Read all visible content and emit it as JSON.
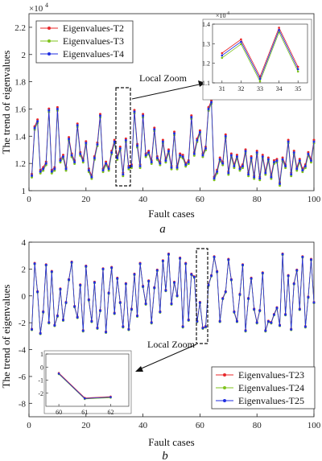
{
  "chart_data": [
    {
      "type": "line",
      "caption": "a",
      "xlabel": "Fault cases",
      "ylabel": "The trend of eigenvalues",
      "y_exponent_label": "×10",
      "y_exponent_power": "4",
      "xlim": [
        0,
        100
      ],
      "ylim": [
        1.0,
        2.3
      ],
      "xticks": [
        "0",
        "20",
        "40",
        "60",
        "80",
        "100"
      ],
      "yticks": [
        "1",
        "1.2",
        "1.4",
        "1.6",
        "1.8",
        "2",
        "2.2"
      ],
      "legend_position": "top-left",
      "grid": false,
      "series": [
        {
          "name": "Eigenvalues-T2",
          "color": "#e8272a",
          "offset": 0.012
        },
        {
          "name": "Eigenvalues-T3",
          "color": "#7fc31c",
          "offset": -0.012
        },
        {
          "name": "Eigenvalues-T4",
          "color": "#1f2ee0",
          "offset": 0
        }
      ],
      "x": [
        1,
        2,
        3,
        4,
        5,
        6,
        7,
        8,
        9,
        10,
        11,
        12,
        13,
        14,
        15,
        16,
        17,
        18,
        19,
        20,
        21,
        22,
        23,
        24,
        25,
        26,
        27,
        28,
        29,
        30,
        31,
        32,
        33,
        34,
        35,
        36,
        37,
        38,
        39,
        40,
        41,
        42,
        43,
        44,
        45,
        46,
        47,
        48,
        49,
        50,
        51,
        52,
        53,
        54,
        55,
        56,
        57,
        58,
        59,
        60,
        61,
        62,
        63,
        64,
        65,
        66,
        67,
        68,
        69,
        70,
        71,
        72,
        73,
        74,
        75,
        76,
        77,
        78,
        79,
        80,
        81,
        82,
        83,
        84,
        85,
        86,
        87,
        88,
        89,
        90,
        91,
        92,
        93,
        94,
        95,
        96,
        97,
        98,
        99,
        100
      ],
      "values": [
        1.11,
        1.46,
        1.51,
        1.14,
        1.16,
        1.2,
        1.59,
        1.14,
        1.16,
        1.6,
        1.22,
        1.25,
        1.16,
        1.38,
        1.26,
        1.21,
        1.48,
        1.27,
        1.22,
        1.35,
        1.15,
        1.1,
        1.24,
        1.34,
        1.55,
        1.15,
        1.2,
        1.16,
        1.28,
        1.36,
        1.24,
        1.31,
        1.12,
        1.37,
        1.17,
        1.18,
        1.58,
        1.33,
        1.18,
        1.55,
        1.26,
        1.28,
        1.21,
        1.45,
        1.24,
        1.2,
        1.36,
        1.22,
        1.29,
        1.17,
        1.42,
        1.17,
        1.26,
        1.25,
        1.19,
        1.21,
        1.54,
        1.27,
        1.37,
        1.43,
        1.26,
        1.31,
        1.6,
        1.65,
        1.09,
        1.14,
        1.23,
        1.2,
        1.4,
        1.13,
        1.26,
        1.18,
        1.25,
        1.16,
        1.18,
        1.29,
        1.12,
        1.24,
        1.1,
        1.28,
        1.09,
        1.25,
        1.13,
        1.23,
        1.1,
        1.21,
        1.22,
        1.05,
        1.23,
        1.18,
        1.36,
        1.12,
        1.28,
        1.16,
        1.22,
        1.15,
        1.18,
        1.27,
        1.22,
        1.36
      ],
      "annotation": "Local Zoom",
      "inset": {
        "exponent_label": "×10",
        "exponent_power": "4",
        "xlim": [
          30.5,
          35.5
        ],
        "ylim": [
          1.1,
          1.4
        ],
        "xticks": [
          "31",
          "32",
          "33",
          "34",
          "35"
        ],
        "yticks": [
          "1.1",
          "1.2",
          "1.3",
          "1.4"
        ]
      }
    },
    {
      "type": "line",
      "caption": "b",
      "xlabel": "Fault cases",
      "ylabel": "The trend of eigenvalues",
      "xlim": [
        0,
        100
      ],
      "ylim": [
        -9,
        4
      ],
      "xticks": [
        "0",
        "20",
        "40",
        "60",
        "80",
        "100"
      ],
      "yticks": [
        "4",
        "2",
        "0",
        "-2",
        "-4",
        "-6",
        "-8"
      ],
      "legend_position": "bottom-right",
      "grid": false,
      "series": [
        {
          "name": "Eigenvalues-T23",
          "color": "#e8272a",
          "offset": 0.04
        },
        {
          "name": "Eigenvalues-T24",
          "color": "#7fc31c",
          "offset": -0.04
        },
        {
          "name": "Eigenvalues-T25",
          "color": "#1f2ee0",
          "offset": 0
        }
      ],
      "x": [
        1,
        2,
        3,
        4,
        5,
        6,
        7,
        8,
        9,
        10,
        11,
        12,
        13,
        14,
        15,
        16,
        17,
        18,
        19,
        20,
        21,
        22,
        23,
        24,
        25,
        26,
        27,
        28,
        29,
        30,
        31,
        32,
        33,
        34,
        35,
        36,
        37,
        38,
        39,
        40,
        41,
        42,
        43,
        44,
        45,
        46,
        47,
        48,
        49,
        50,
        51,
        52,
        53,
        54,
        55,
        56,
        57,
        58,
        59,
        60,
        61,
        62,
        63,
        64,
        65,
        66,
        67,
        68,
        69,
        70,
        71,
        72,
        73,
        74,
        75,
        76,
        77,
        78,
        79,
        80,
        81,
        82,
        83,
        84,
        85,
        86,
        87,
        88,
        89,
        90,
        91,
        92,
        93,
        94,
        95,
        96,
        97,
        98,
        99,
        100
      ],
      "values": [
        -2.5,
        2.4,
        0.3,
        -2.8,
        -1.2,
        2.3,
        -2.0,
        1.8,
        -2.2,
        -1.5,
        0.5,
        -1.8,
        -0.5,
        1.2,
        2.5,
        -0.8,
        -1.6,
        0.8,
        -2.6,
        2.2,
        -0.3,
        -1.9,
        1.0,
        -2.4,
        -1.1,
        2.0,
        -2.7,
        0.2,
        2.1,
        -1.3,
        1.3,
        -0.5,
        -2.3,
        0.9,
        -2.5,
        -1.0,
        1.6,
        -1.5,
        2.4,
        0.7,
        -0.6,
        1.1,
        -2.0,
        0.6,
        1.9,
        -1.2,
        2.6,
        0.4,
        3.1,
        -0.6,
        1.0,
        0.0,
        2.8,
        -2.3,
        2.4,
        -1.8,
        1.6,
        1.4,
        -1.9,
        -0.5,
        -2.4,
        -2.3,
        0.8,
        1.5,
        2.9,
        1.8,
        -1.9,
        -0.2,
        0.3,
        2.7,
        1.2,
        -1.2,
        -1.9,
        0.1,
        2.3,
        -2.6,
        -0.2,
        1.3,
        -1.0,
        -2.0,
        -1.1,
        1.7,
        -2.6,
        -1.9,
        -2.0,
        -1.4,
        -0.9,
        -2.2,
        3.1,
        -1.4,
        1.5,
        -2.5,
        0.9,
        1.9,
        -1.0,
        2.9,
        -2.3,
        -0.1,
        2.7,
        -0.5
      ],
      "annotation": "Local Zoom",
      "inset": {
        "xlim": [
          59.5,
          62.7
        ],
        "ylim": [
          -3,
          1
        ],
        "xticks": [
          "60",
          "61",
          "62"
        ],
        "yticks": [
          "1",
          "0",
          "-1",
          "-2"
        ]
      }
    }
  ]
}
